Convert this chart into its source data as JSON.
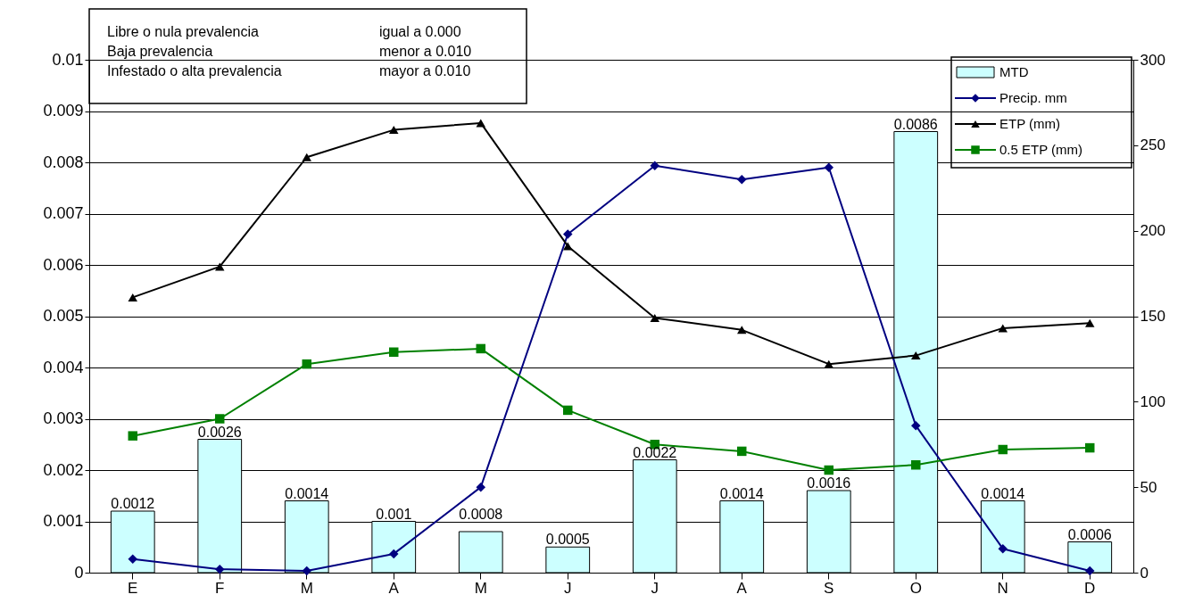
{
  "chart_data": {
    "type": "bar",
    "categories": [
      "E",
      "F",
      "M",
      "A",
      "M",
      "J",
      "J",
      "A",
      "S",
      "O",
      "N",
      "D"
    ],
    "series": [
      {
        "name": "MTD",
        "color": "#ccffff",
        "values": [
          0.0012,
          0.0026,
          0.0014,
          0.001,
          0.0008,
          0.0005,
          0.0022,
          0.0014,
          0.0016,
          0.0086,
          0.0014,
          0.0006
        ],
        "value_labels": [
          "0.0012",
          "0.0026",
          "0.0014",
          "0.001",
          "0.0008",
          "0.0005",
          "0.0022",
          "0.0014",
          "0.0016",
          "0.0086",
          "0.0014",
          "0.0006"
        ]
      },
      {
        "name": "Precip. mm",
        "type": "line",
        "axis": "y2",
        "color": "#000080",
        "marker": "diamond",
        "values": [
          8,
          2,
          1,
          11,
          50,
          198,
          238,
          230,
          237,
          86,
          14,
          1
        ]
      },
      {
        "name": "ETP (mm)",
        "type": "line",
        "axis": "y2",
        "color": "#000000",
        "marker": "triangle",
        "values": [
          161,
          179,
          243,
          259,
          263,
          191,
          149,
          142,
          122,
          127,
          143,
          146
        ]
      },
      {
        "name": "0.5 ETP (mm)",
        "type": "line",
        "axis": "y2",
        "color": "#008000",
        "marker": "square",
        "values": [
          80,
          90,
          122,
          129,
          131,
          95,
          75,
          71,
          60,
          63,
          72,
          73
        ]
      }
    ],
    "ylim": [
      0,
      0.01
    ],
    "yticks": [
      0,
      0.001,
      0.002,
      0.003,
      0.004,
      0.005,
      0.006,
      0.007,
      0.008,
      0.009,
      0.01
    ],
    "y2lim": [
      0,
      300
    ],
    "y2ticks": [
      0,
      50,
      100,
      150,
      200,
      250,
      300
    ],
    "grid": "y",
    "legend": "top right",
    "annotations": [
      "Libre o nula prevalencia",
      "igual a  0.000",
      "Baja prevalencia",
      "menor a 0.010",
      "Infestado o alta prevalencia",
      "mayor a 0.010"
    ]
  }
}
